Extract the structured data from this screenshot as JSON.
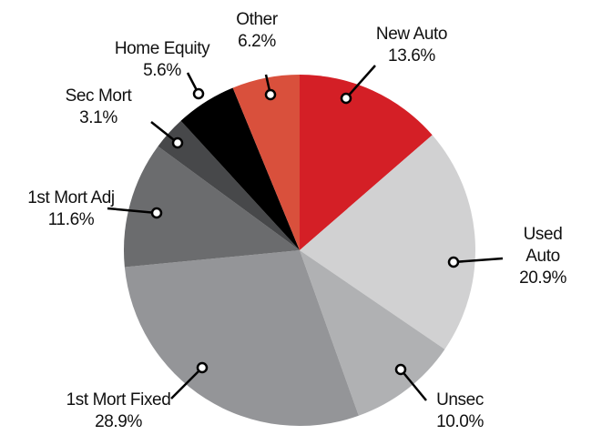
{
  "chart_data": {
    "type": "pie",
    "categories": [
      "New Auto",
      "Used Auto",
      "Unsec",
      "1st Mort Fixed",
      "1st Mort Adj",
      "Sec Mort",
      "Home Equity",
      "Other"
    ],
    "values": [
      13.6,
      20.9,
      10.0,
      28.9,
      11.6,
      3.1,
      5.6,
      6.2
    ],
    "value_labels": [
      "13.6%",
      "20.9%",
      "10.0%",
      "28.9%",
      "11.6%",
      "3.1%",
      "5.6%",
      "6.2%"
    ],
    "colors": [
      "#d41f26",
      "#d1d1d2",
      "#b0b1b3",
      "#949598",
      "#6b6c6e",
      "#47484a",
      "#000000",
      "#d9503c"
    ]
  }
}
